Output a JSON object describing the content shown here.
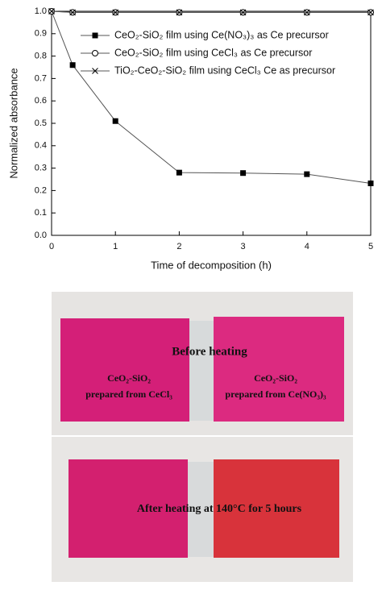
{
  "chart_data": {
    "type": "line",
    "x_label": "Time of decomposition (h)",
    "y_label": "Normalized absorbance",
    "x": [
      0,
      0.33,
      1,
      2,
      3,
      4,
      5
    ],
    "series": [
      {
        "name": "CeO₂-SiO₂ film using Ce(NO₃)₃ as Ce precursor",
        "color": "#000000",
        "marker": "square",
        "values": [
          1.0,
          0.76,
          0.51,
          0.28,
          0.278,
          0.273,
          0.232
        ]
      },
      {
        "name": "CeO₂-SiO₂ film using CeCl₃ as Ce precursor",
        "color": "#000000",
        "marker": "circle",
        "values": [
          1.0,
          0.995,
          0.995,
          0.995,
          0.995,
          0.995,
          0.995
        ]
      },
      {
        "name": "TiO₂-CeO₂-SiO₂ film using CeCl₃ Ce as precursor",
        "color": "#000000",
        "marker": "cross",
        "values": [
          1.0,
          0.995,
          0.995,
          0.995,
          0.995,
          0.995,
          0.995
        ]
      }
    ],
    "xlim": [
      0,
      5
    ],
    "ylim": [
      0,
      1
    ],
    "xticks": [
      0,
      1,
      2,
      3,
      4,
      5
    ],
    "yticks": [
      {
        "value": 0,
        "label": "0.0"
      },
      0.1,
      0.2,
      0.3,
      0.4,
      0.5,
      0.6,
      0.7,
      0.8,
      0.9,
      {
        "value": 1,
        "label": "1.0"
      }
    ],
    "legend": "top-left"
  },
  "photos": {
    "before": {
      "title": "Before heating",
      "left": [
        "CeO₂-SiO₂",
        "prepared from CeCl₃"
      ],
      "right": [
        "CeO₂-SiO₂",
        "prepared from Ce(NO₃)₃"
      ]
    },
    "after": {
      "title": "After heating at 140°C for 5 hours"
    }
  }
}
